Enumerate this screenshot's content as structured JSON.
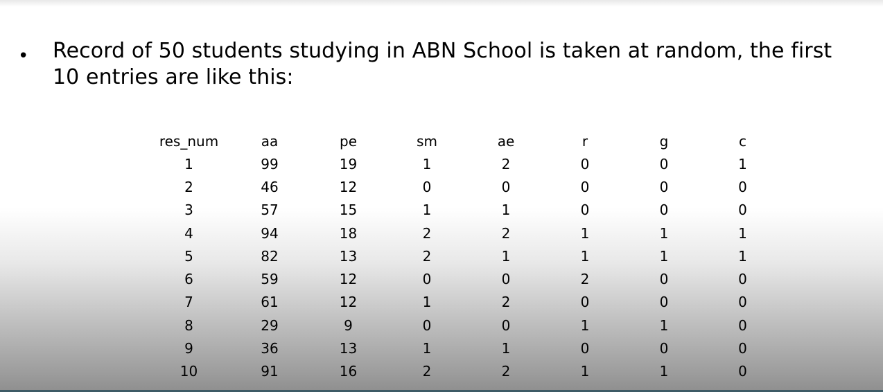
{
  "bullet": {
    "symbol": "•",
    "text": "Record of 50 students studying in ABN School is taken at random, the first 10 entries are like this:"
  },
  "table": {
    "headers": [
      "res_num",
      "aa",
      "pe",
      "sm",
      "ae",
      "r",
      "g",
      "c"
    ],
    "rows": [
      [
        "1",
        "99",
        "19",
        "1",
        "2",
        "0",
        "0",
        "1"
      ],
      [
        "2",
        "46",
        "12",
        "0",
        "0",
        "0",
        "0",
        "0"
      ],
      [
        "3",
        "57",
        "15",
        "1",
        "1",
        "0",
        "0",
        "0"
      ],
      [
        "4",
        "94",
        "18",
        "2",
        "2",
        "1",
        "1",
        "1"
      ],
      [
        "5",
        "82",
        "13",
        "2",
        "1",
        "1",
        "1",
        "1"
      ],
      [
        "6",
        "59",
        "12",
        "0",
        "0",
        "2",
        "0",
        "0"
      ],
      [
        "7",
        "61",
        "12",
        "1",
        "2",
        "0",
        "0",
        "0"
      ],
      [
        "8",
        "29",
        "9",
        "0",
        "0",
        "1",
        "1",
        "0"
      ],
      [
        "9",
        "36",
        "13",
        "1",
        "1",
        "0",
        "0",
        "0"
      ],
      [
        "10",
        "91",
        "16",
        "2",
        "2",
        "1",
        "1",
        "0"
      ]
    ]
  }
}
